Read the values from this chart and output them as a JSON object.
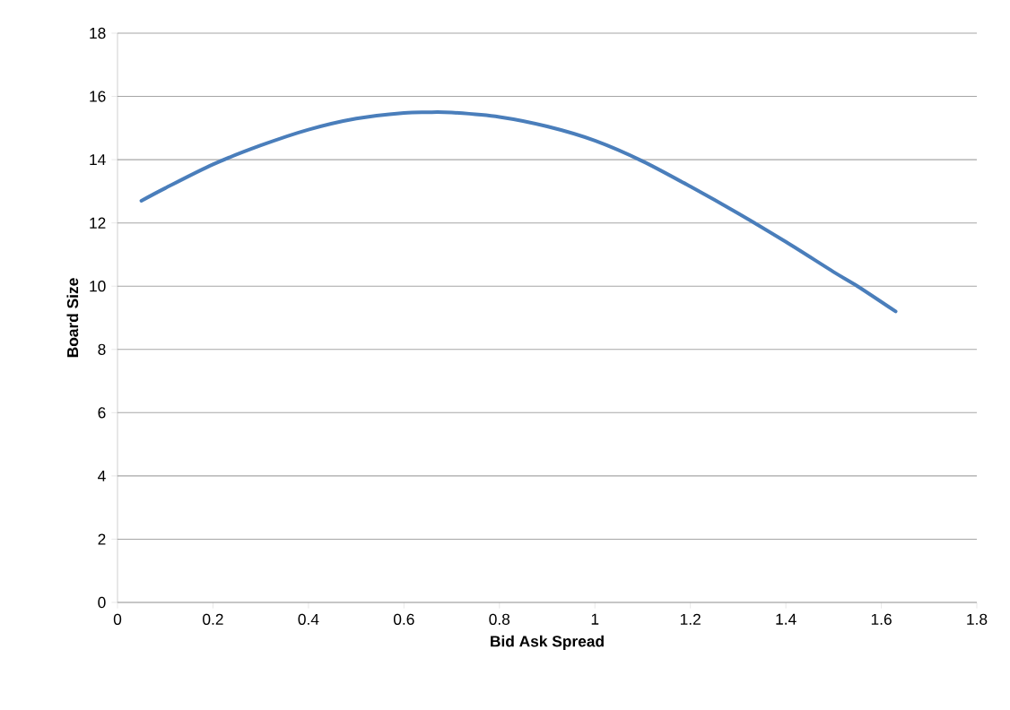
{
  "chart_data": {
    "type": "line",
    "xlabel": "Bid Ask Spread",
    "ylabel": "Board Size",
    "x": [
      0.05,
      0.1,
      0.2,
      0.3,
      0.4,
      0.5,
      0.6,
      0.65,
      0.7,
      0.8,
      0.9,
      1.0,
      1.1,
      1.2,
      1.3,
      1.4,
      1.5,
      1.55,
      1.63
    ],
    "series": [
      {
        "color": "#4a7ebb",
        "values": [
          12.7,
          13.1,
          13.85,
          14.45,
          14.95,
          15.3,
          15.48,
          15.5,
          15.49,
          15.35,
          15.05,
          14.6,
          13.95,
          13.15,
          12.3,
          11.4,
          10.45,
          10.0,
          9.2
        ]
      }
    ],
    "xlim": [
      0,
      1.8
    ],
    "ylim": [
      0,
      18
    ],
    "xticks": [
      0,
      0.2,
      0.4,
      0.6,
      0.8,
      1,
      1.2,
      1.4,
      1.6,
      1.8
    ],
    "yticks": [
      0,
      2,
      4,
      6,
      8,
      10,
      12,
      14,
      16,
      18
    ],
    "grid": "y",
    "marker": "none",
    "line_style": "solid"
  }
}
